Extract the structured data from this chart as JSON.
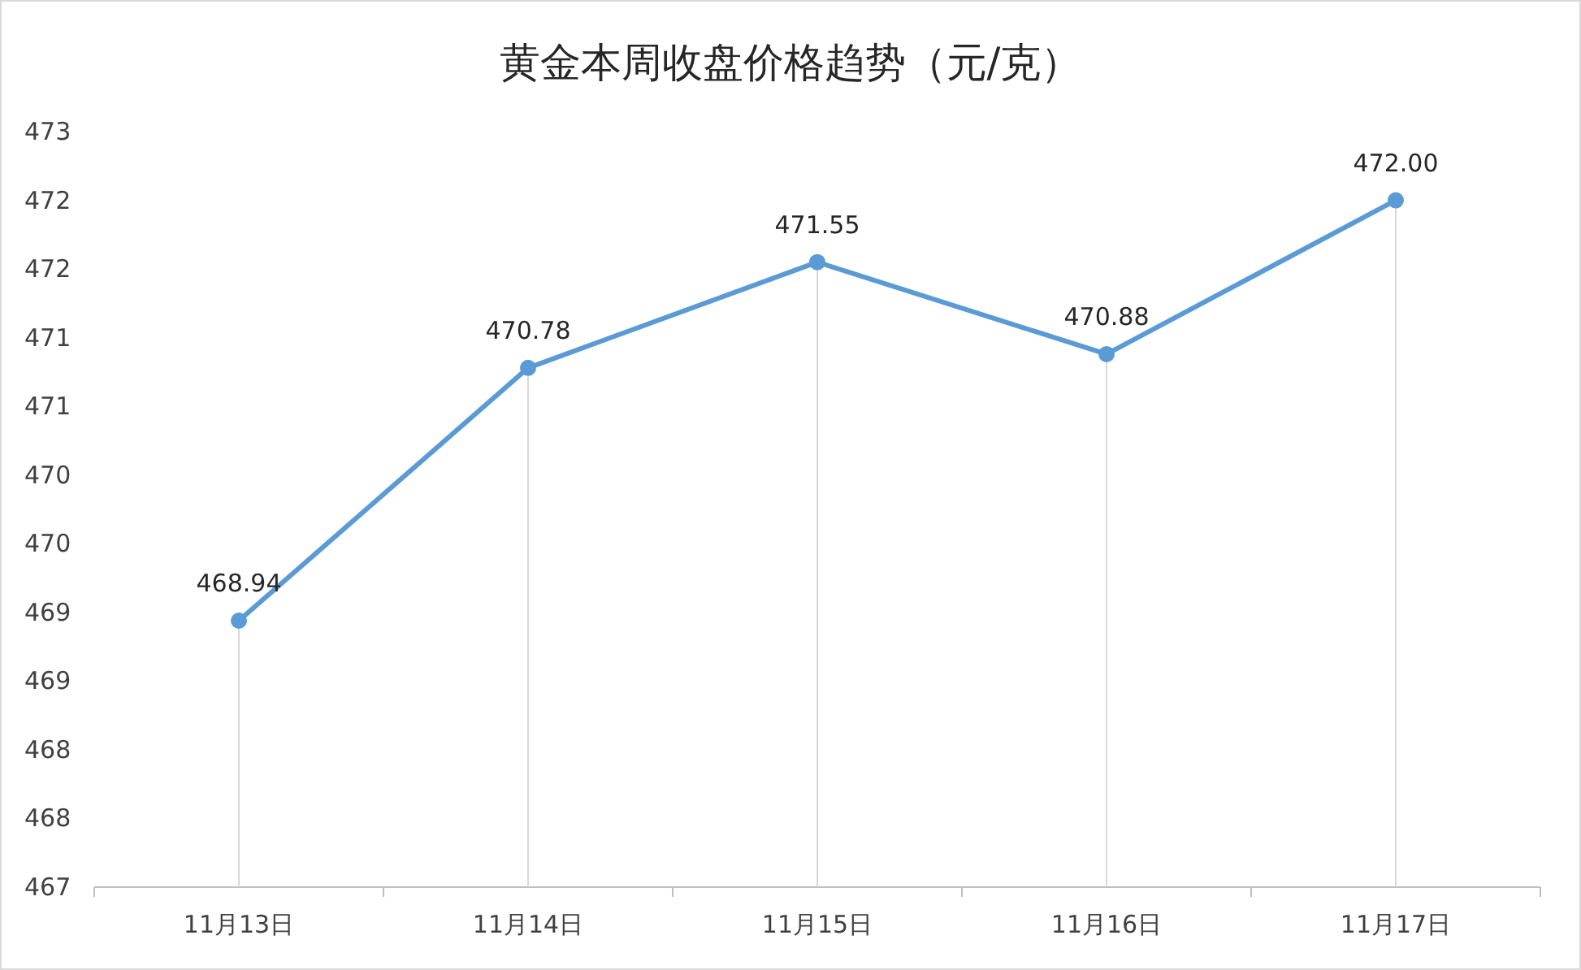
{
  "chart_data": {
    "type": "line",
    "title": "黄金本周收盘价格趋势（元/克）",
    "categories": [
      "11月13日",
      "11月14日",
      "11月15日",
      "11月16日",
      "11月17日"
    ],
    "series": [
      {
        "color": "#5b9bd5",
        "values": [
          468.94,
          470.78,
          471.55,
          470.88,
          472.0
        ]
      }
    ],
    "value_labels": [
      "468.94",
      "470.78",
      "471.55",
      "470.88",
      "472.00"
    ],
    "ylim": [
      467,
      472.5
    ],
    "yticks": [
      467,
      {
        "value": 467.5,
        "label": "468"
      },
      468,
      {
        "value": 468.5,
        "label": "469"
      },
      469,
      {
        "value": 469.5,
        "label": "470"
      },
      470,
      {
        "value": 470.5,
        "label": "471"
      },
      471,
      {
        "value": 471.5,
        "label": "472"
      },
      472,
      {
        "value": 472.5,
        "label": "473"
      }
    ],
    "grid": "x",
    "marker": "circle",
    "line_style": "solid"
  }
}
